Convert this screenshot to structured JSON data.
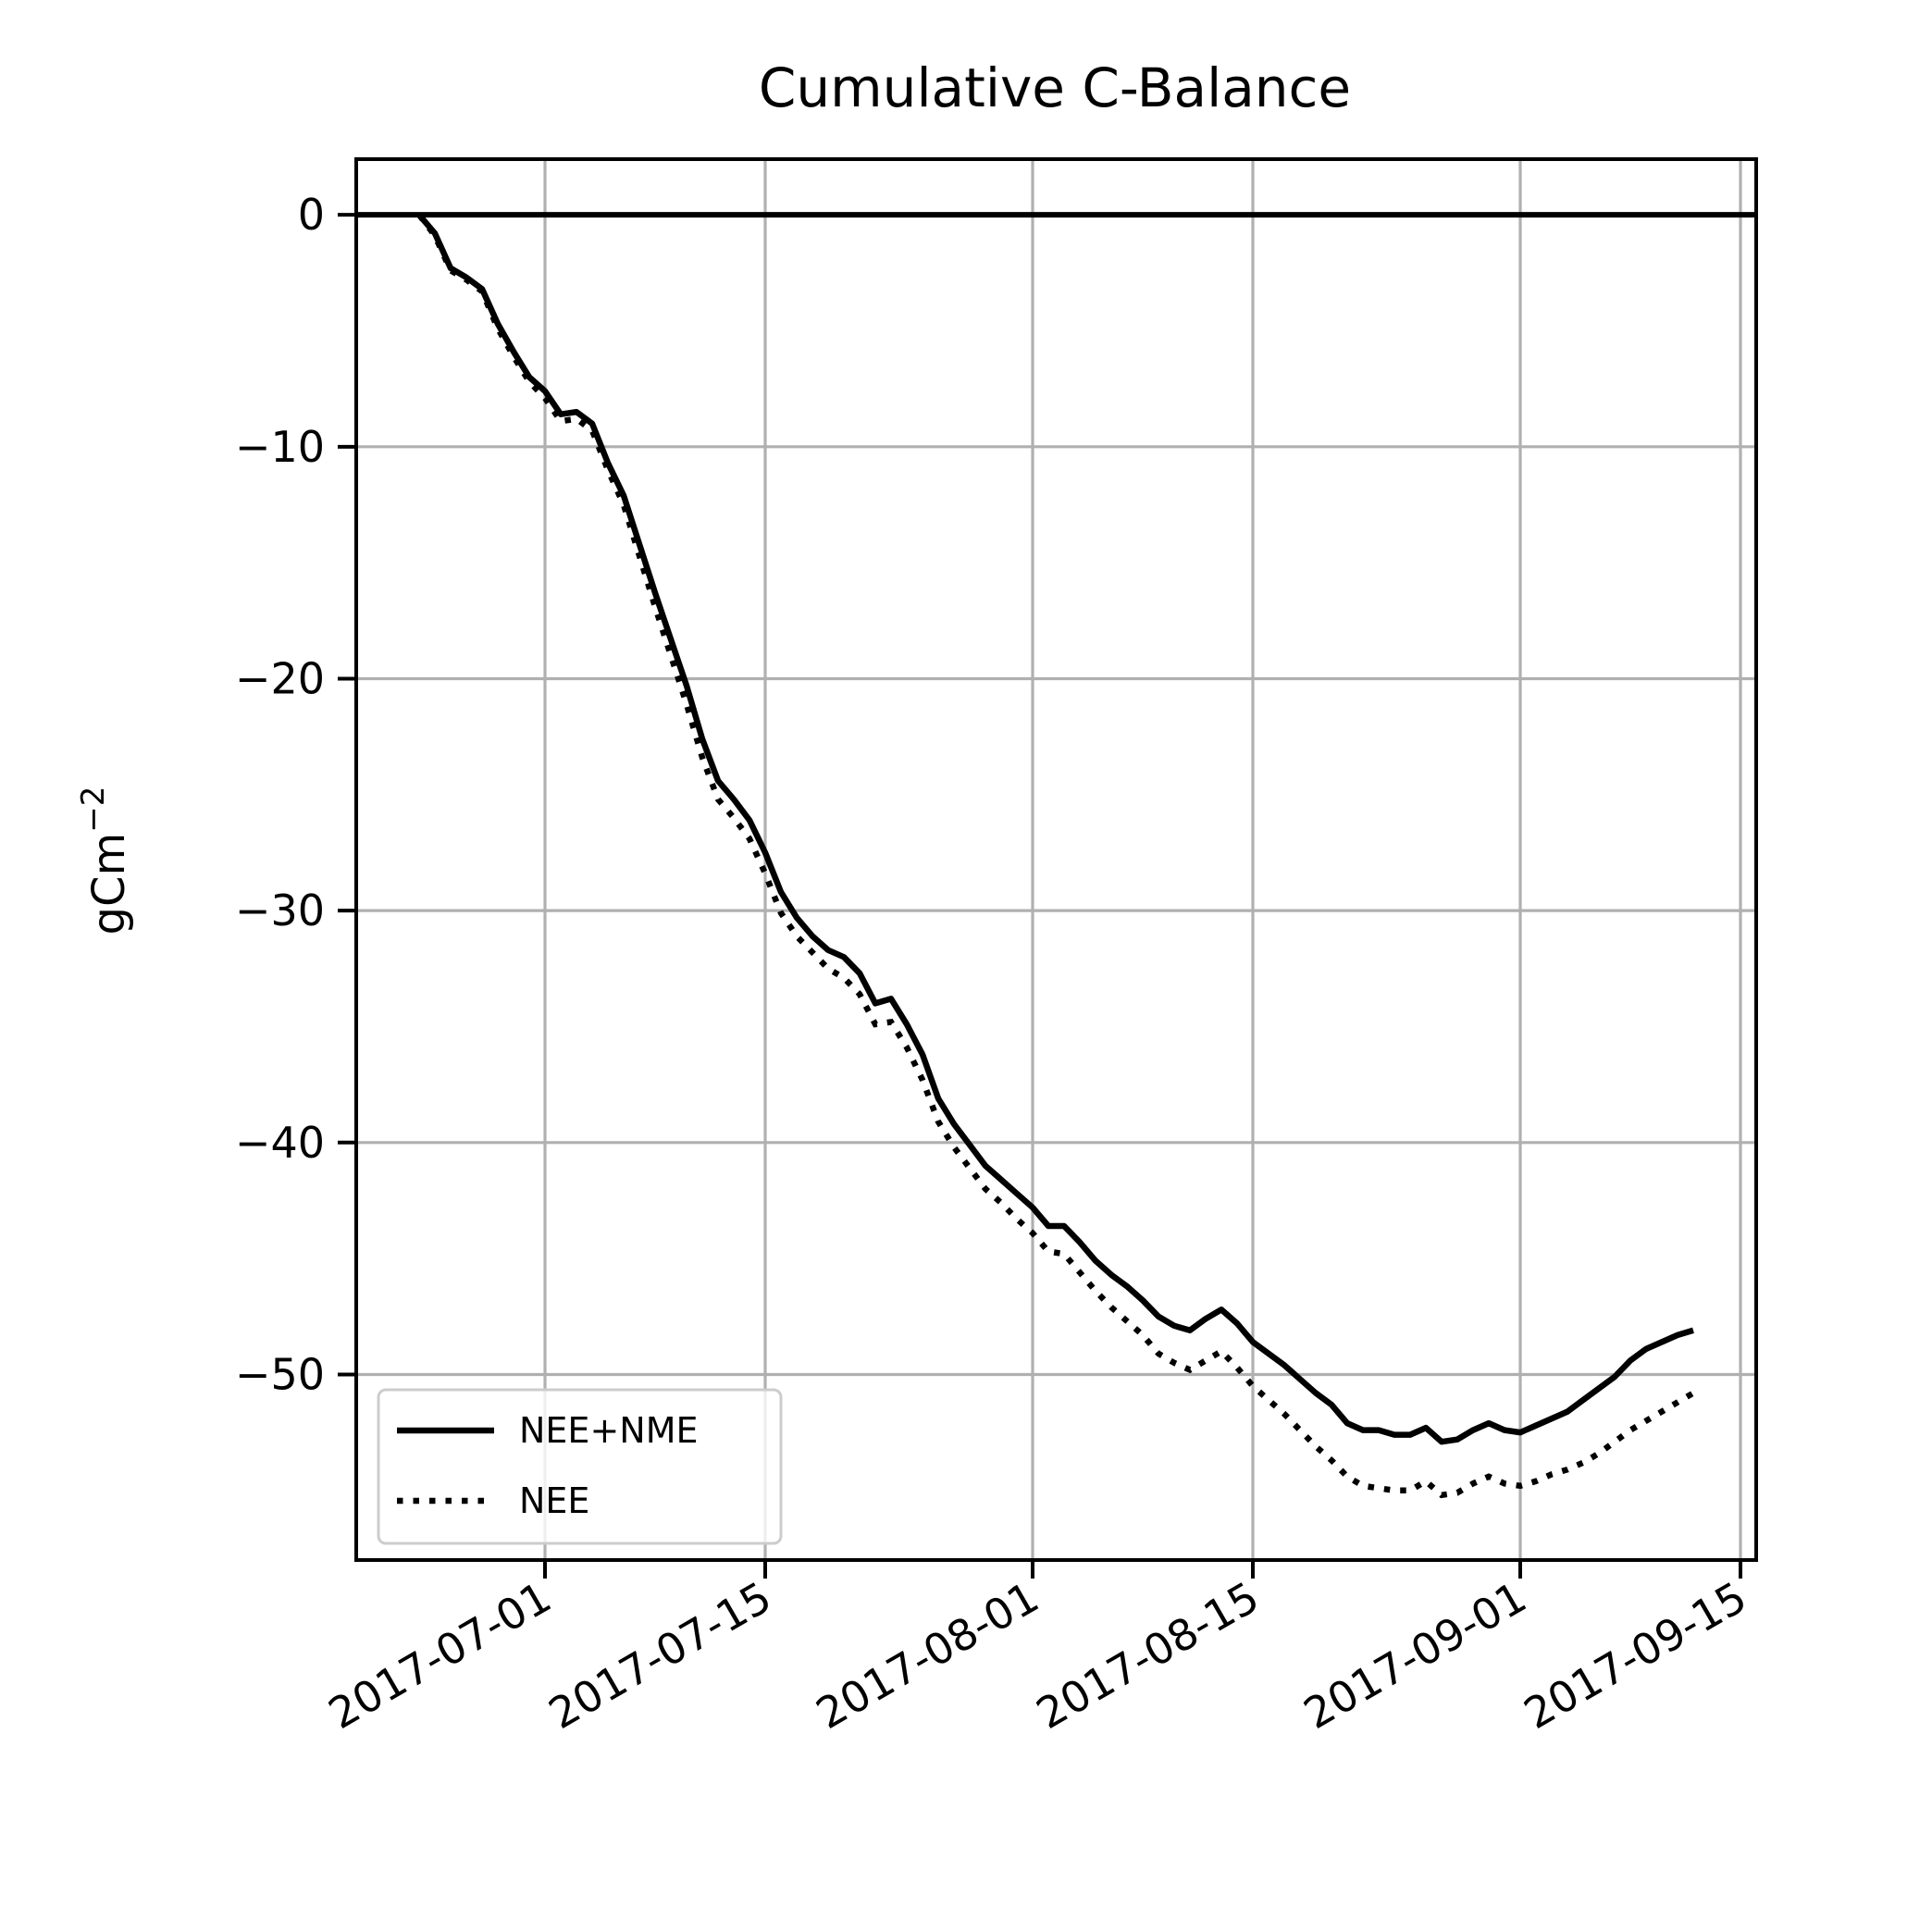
{
  "chart_data": {
    "type": "line",
    "title": "Cumulative C-Balance",
    "xlabel": "",
    "ylabel": "gCm",
    "ylabel_superscript": "−2",
    "xlim": [
      "2017-06-19",
      "2017-09-16"
    ],
    "ylim": [
      -58,
      2.4
    ],
    "grid": true,
    "legend_placement": "lower-left",
    "x_ticks": [
      {
        "date": "2017-07-01",
        "label": "2017-07-01"
      },
      {
        "date": "2017-07-15",
        "label": "2017-07-15"
      },
      {
        "date": "2017-08-01",
        "label": "2017-08-01"
      },
      {
        "date": "2017-08-15",
        "label": "2017-08-15"
      },
      {
        "date": "2017-09-01",
        "label": "2017-09-01"
      },
      {
        "date": "2017-09-15",
        "label": "2017-09-15"
      }
    ],
    "y_ticks": [
      {
        "value": 0,
        "label": "0"
      },
      {
        "value": -10,
        "label": "−10"
      },
      {
        "value": -20,
        "label": "−20"
      },
      {
        "value": -30,
        "label": "−30"
      },
      {
        "value": -40,
        "label": "−40"
      },
      {
        "value": -50,
        "label": "−50"
      }
    ],
    "reference_line": {
      "y": 0,
      "color": "#000000"
    },
    "series": [
      {
        "name": "NEE+NME",
        "style": "solid",
        "color": "#000000",
        "points": [
          [
            "2017-06-23",
            0
          ],
          [
            "2017-06-24",
            -0.8
          ],
          [
            "2017-06-25",
            -2.3
          ],
          [
            "2017-06-26",
            -2.7
          ],
          [
            "2017-06-27",
            -3.2
          ],
          [
            "2017-06-28",
            -4.7
          ],
          [
            "2017-06-29",
            -5.9
          ],
          [
            "2017-06-30",
            -7
          ],
          [
            "2017-07-01",
            -7.6
          ],
          [
            "2017-07-02",
            -8.6
          ],
          [
            "2017-07-03",
            -8.5
          ],
          [
            "2017-07-04",
            -9
          ],
          [
            "2017-07-05",
            -10.7
          ],
          [
            "2017-07-06",
            -12.1
          ],
          [
            "2017-07-07",
            -14.2
          ],
          [
            "2017-07-08",
            -16.3
          ],
          [
            "2017-07-09",
            -18.3
          ],
          [
            "2017-07-10",
            -20.3
          ],
          [
            "2017-07-11",
            -22.6
          ],
          [
            "2017-07-12",
            -24.4
          ],
          [
            "2017-07-13",
            -25.2
          ],
          [
            "2017-07-14",
            -26.1
          ],
          [
            "2017-07-15",
            -27.5
          ],
          [
            "2017-07-16",
            -29.2
          ],
          [
            "2017-07-17",
            -30.3
          ],
          [
            "2017-07-18",
            -31.1
          ],
          [
            "2017-07-19",
            -31.7
          ],
          [
            "2017-07-20",
            -32
          ],
          [
            "2017-07-21",
            -32.7
          ],
          [
            "2017-07-22",
            -34
          ],
          [
            "2017-07-23",
            -33.8
          ],
          [
            "2017-07-24",
            -34.9
          ],
          [
            "2017-07-25",
            -36.2
          ],
          [
            "2017-07-26",
            -38.1
          ],
          [
            "2017-07-27",
            -39.2
          ],
          [
            "2017-07-28",
            -40.1
          ],
          [
            "2017-07-29",
            -41
          ],
          [
            "2017-07-30",
            -41.6
          ],
          [
            "2017-07-31",
            -42.2
          ],
          [
            "2017-08-01",
            -42.8
          ],
          [
            "2017-08-02",
            -43.6
          ],
          [
            "2017-08-03",
            -43.6
          ],
          [
            "2017-08-04",
            -44.3
          ],
          [
            "2017-08-05",
            -45.1
          ],
          [
            "2017-08-06",
            -45.7
          ],
          [
            "2017-08-07",
            -46.2
          ],
          [
            "2017-08-08",
            -46.8
          ],
          [
            "2017-08-09",
            -47.5
          ],
          [
            "2017-08-10",
            -47.9
          ],
          [
            "2017-08-11",
            -48.1
          ],
          [
            "2017-08-12",
            -47.6
          ],
          [
            "2017-08-13",
            -47.2
          ],
          [
            "2017-08-14",
            -47.8
          ],
          [
            "2017-08-15",
            -48.6
          ],
          [
            "2017-08-16",
            -49.1
          ],
          [
            "2017-08-17",
            -49.6
          ],
          [
            "2017-08-18",
            -50.2
          ],
          [
            "2017-08-19",
            -50.8
          ],
          [
            "2017-08-20",
            -51.3
          ],
          [
            "2017-08-21",
            -52.1
          ],
          [
            "2017-08-22",
            -52.4
          ],
          [
            "2017-08-23",
            -52.4
          ],
          [
            "2017-08-24",
            -52.6
          ],
          [
            "2017-08-25",
            -52.6
          ],
          [
            "2017-08-26",
            -52.3
          ],
          [
            "2017-08-27",
            -52.9
          ],
          [
            "2017-08-28",
            -52.8
          ],
          [
            "2017-08-29",
            -52.4
          ],
          [
            "2017-08-30",
            -52.1
          ],
          [
            "2017-08-31",
            -52.4
          ],
          [
            "2017-09-01",
            -52.5
          ],
          [
            "2017-09-02",
            -52.2
          ],
          [
            "2017-09-03",
            -51.9
          ],
          [
            "2017-09-04",
            -51.6
          ],
          [
            "2017-09-05",
            -51.1
          ],
          [
            "2017-09-06",
            -50.6
          ],
          [
            "2017-09-07",
            -50.1
          ],
          [
            "2017-09-08",
            -49.4
          ],
          [
            "2017-09-09",
            -48.9
          ],
          [
            "2017-09-10",
            -48.6
          ],
          [
            "2017-09-11",
            -48.3
          ],
          [
            "2017-09-12",
            -48.1
          ]
        ]
      },
      {
        "name": "NEE",
        "style": "dotted",
        "color": "#000000",
        "points": [
          [
            "2017-06-23",
            0
          ],
          [
            "2017-06-24",
            -0.9
          ],
          [
            "2017-06-25",
            -2.4
          ],
          [
            "2017-06-26",
            -2.8
          ],
          [
            "2017-06-27",
            -3.3
          ],
          [
            "2017-06-28",
            -4.9
          ],
          [
            "2017-06-29",
            -6.1
          ],
          [
            "2017-06-30",
            -7.2
          ],
          [
            "2017-07-01",
            -7.9
          ],
          [
            "2017-07-02",
            -8.9
          ],
          [
            "2017-07-03",
            -8.8
          ],
          [
            "2017-07-04",
            -9.3
          ],
          [
            "2017-07-05",
            -11
          ],
          [
            "2017-07-06",
            -12.5
          ],
          [
            "2017-07-07",
            -14.7
          ],
          [
            "2017-07-08",
            -16.9
          ],
          [
            "2017-07-09",
            -19
          ],
          [
            "2017-07-10",
            -21.1
          ],
          [
            "2017-07-11",
            -23.4
          ],
          [
            "2017-07-12",
            -25.2
          ],
          [
            "2017-07-13",
            -26
          ],
          [
            "2017-07-14",
            -26.9
          ],
          [
            "2017-07-15",
            -28.4
          ],
          [
            "2017-07-16",
            -30.1
          ],
          [
            "2017-07-17",
            -31.1
          ],
          [
            "2017-07-18",
            -31.8
          ],
          [
            "2017-07-19",
            -32.5
          ],
          [
            "2017-07-20",
            -32.9
          ],
          [
            "2017-07-21",
            -33.6
          ],
          [
            "2017-07-22",
            -34.9
          ],
          [
            "2017-07-23",
            -34.8
          ],
          [
            "2017-07-24",
            -35.9
          ],
          [
            "2017-07-25",
            -37.3
          ],
          [
            "2017-07-26",
            -39.1
          ],
          [
            "2017-07-27",
            -40.2
          ],
          [
            "2017-07-28",
            -41.1
          ],
          [
            "2017-07-29",
            -42
          ],
          [
            "2017-07-30",
            -42.6
          ],
          [
            "2017-07-31",
            -43.3
          ],
          [
            "2017-08-01",
            -43.9
          ],
          [
            "2017-08-02",
            -44.7
          ],
          [
            "2017-08-03",
            -44.8
          ],
          [
            "2017-08-04",
            -45.6
          ],
          [
            "2017-08-05",
            -46.4
          ],
          [
            "2017-08-06",
            -47.1
          ],
          [
            "2017-08-07",
            -47.7
          ],
          [
            "2017-08-08",
            -48.3
          ],
          [
            "2017-08-09",
            -49.1
          ],
          [
            "2017-08-10",
            -49.5
          ],
          [
            "2017-08-11",
            -49.8
          ],
          [
            "2017-08-12",
            -49.4
          ],
          [
            "2017-08-13",
            -49
          ],
          [
            "2017-08-14",
            -49.7
          ],
          [
            "2017-08-15",
            -50.5
          ],
          [
            "2017-08-16",
            -51.1
          ],
          [
            "2017-08-17",
            -51.7
          ],
          [
            "2017-08-18",
            -52.4
          ],
          [
            "2017-08-19",
            -53.1
          ],
          [
            "2017-08-20",
            -53.7
          ],
          [
            "2017-08-21",
            -54.4
          ],
          [
            "2017-08-22",
            -54.8
          ],
          [
            "2017-08-23",
            -54.9
          ],
          [
            "2017-08-24",
            -55
          ],
          [
            "2017-08-25",
            -55
          ],
          [
            "2017-08-26",
            -54.6
          ],
          [
            "2017-08-27",
            -55.2
          ],
          [
            "2017-08-28",
            -55.1
          ],
          [
            "2017-08-29",
            -54.7
          ],
          [
            "2017-08-30",
            -54.4
          ],
          [
            "2017-08-31",
            -54.7
          ],
          [
            "2017-09-01",
            -54.8
          ],
          [
            "2017-09-02",
            -54.6
          ],
          [
            "2017-09-03",
            -54.3
          ],
          [
            "2017-09-04",
            -54.1
          ],
          [
            "2017-09-05",
            -53.8
          ],
          [
            "2017-09-06",
            -53.4
          ],
          [
            "2017-09-07",
            -52.9
          ],
          [
            "2017-09-08",
            -52.4
          ],
          [
            "2017-09-09",
            -52
          ],
          [
            "2017-09-10",
            -51.6
          ],
          [
            "2017-09-11",
            -51.2
          ],
          [
            "2017-09-12",
            -50.8
          ]
        ]
      }
    ]
  }
}
